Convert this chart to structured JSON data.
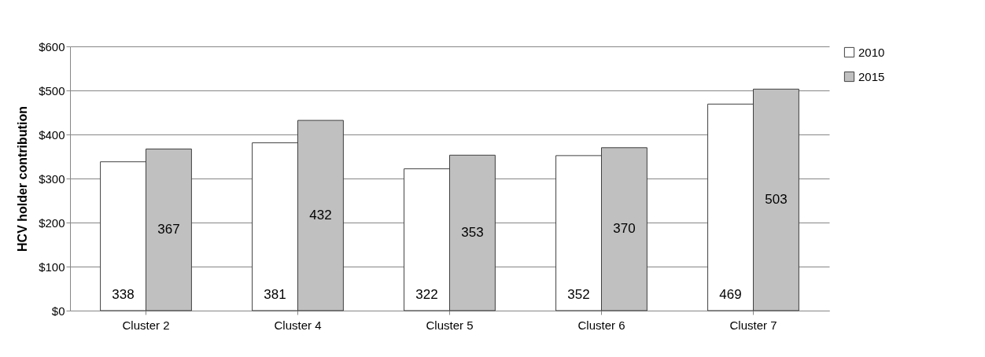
{
  "chart_data": {
    "type": "bar",
    "ylabel": "HCV holder contribution",
    "categories": [
      "Cluster 2",
      "Cluster 4",
      "Cluster 5",
      "Cluster 6",
      "Cluster 7"
    ],
    "series": [
      {
        "name": "2010",
        "color": "#ffffff",
        "values": [
          338,
          381,
          322,
          352,
          469
        ]
      },
      {
        "name": "2015",
        "color": "#c0c0c0",
        "values": [
          367,
          432,
          353,
          370,
          503
        ]
      }
    ],
    "ylim": [
      0,
      600
    ],
    "yticks": [
      {
        "value": 0,
        "label": "$0"
      },
      {
        "value": 100,
        "label": "$100"
      },
      {
        "value": 200,
        "label": "$200"
      },
      {
        "value": 300,
        "label": "$300"
      },
      {
        "value": 400,
        "label": "$400"
      },
      {
        "value": 500,
        "label": "$500"
      },
      {
        "value": 600,
        "label": "$600"
      }
    ],
    "grid": "y",
    "legend": "right",
    "data_labels": true
  }
}
